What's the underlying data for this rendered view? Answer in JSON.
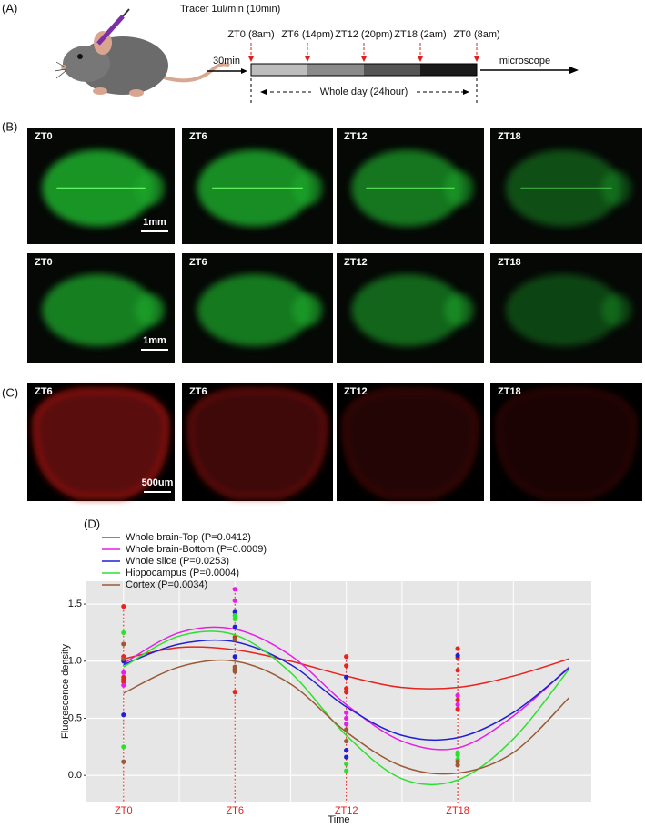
{
  "panel_a": {
    "label": "(A)",
    "tracer": "Tracer 1ul/min (10min)",
    "delay": "30min",
    "timepoints": [
      "ZT0 (8am)",
      "ZT6 (14pm)",
      "ZT12 (20pm)",
      "ZT18 (2am)",
      "ZT0 (8am)"
    ],
    "span": "Whole day (24hour)",
    "end": "microscope"
  },
  "panel_b": {
    "label": "(B)",
    "rows": [
      [
        "ZT0",
        "ZT6",
        "ZT12",
        "ZT18"
      ],
      [
        "ZT0",
        "ZT6",
        "ZT12",
        "ZT18"
      ]
    ],
    "scale_bar": "1mm"
  },
  "panel_c": {
    "label": "(C)",
    "images": [
      "ZT6",
      "ZT6",
      "ZT12",
      "ZT18"
    ],
    "scale_bar": "500um"
  },
  "chart_data": {
    "type": "scatter",
    "panel_label": "(D)",
    "x_label": "Time",
    "y_label": "Fluorescence density",
    "xlim": [
      -2,
      25.2
    ],
    "ylim": [
      -0.23,
      1.7
    ],
    "xticks": [
      {
        "value": 0,
        "label": "ZT0"
      },
      {
        "value": 6,
        "label": "ZT6"
      },
      {
        "value": 12,
        "label": "ZT12"
      },
      {
        "value": 18,
        "label": "ZT18"
      }
    ],
    "xgrid": [
      0,
      3,
      6,
      9,
      12,
      15,
      18,
      21,
      24
    ],
    "yticks": [
      {
        "value": 0,
        "label": "0.0"
      },
      0.5,
      {
        "value": 1,
        "label": "1.0"
      },
      1.5
    ],
    "grid": true,
    "series": [
      {
        "name": "Whole brain-Top (P=0.0412)",
        "color": "#e8221c",
        "x": [
          0,
          0,
          0,
          0,
          0,
          6,
          6,
          6,
          12,
          12,
          12,
          12,
          18,
          18,
          18,
          18,
          18
        ],
        "values": [
          1.48,
          1.04,
          0.86,
          0.84,
          0.82,
          1.21,
          0.93,
          0.73,
          1.04,
          0.96,
          0.76,
          0.73,
          1.11,
          1.03,
          0.92,
          0.66,
          0.58
        ],
        "fit": {
          "x": [
            0,
            3,
            6,
            9,
            12,
            15,
            18,
            21,
            24
          ],
          "values": [
            1.02,
            1.12,
            1.1,
            1.0,
            0.87,
            0.77,
            0.77,
            0.87,
            1.02
          ]
        }
      },
      {
        "name": "Whole brain-Bottom (P=0.0009)",
        "color": "#e61ee6",
        "x": [
          0,
          0,
          6,
          6,
          12,
          12,
          12,
          18,
          18
        ],
        "values": [
          0.9,
          0.79,
          1.63,
          1.53,
          0.55,
          0.5,
          0.45,
          0.7,
          0.62
        ],
        "fit": {
          "x": [
            0,
            3,
            6,
            9,
            12,
            15,
            18,
            21,
            24
          ],
          "values": [
            0.98,
            1.25,
            1.28,
            1.05,
            0.62,
            0.3,
            0.24,
            0.52,
            0.95
          ]
        }
      },
      {
        "name": "Whole slice (P=0.0253)",
        "color": "#1f1fd6",
        "x": [
          0,
          0,
          6,
          6,
          6,
          12,
          12,
          12,
          18
        ],
        "values": [
          1.0,
          0.53,
          1.43,
          1.3,
          1.04,
          0.86,
          0.22,
          0.16,
          1.05
        ],
        "fit": {
          "x": [
            0,
            3,
            6,
            9,
            12,
            15,
            18,
            21,
            24
          ],
          "values": [
            0.97,
            1.15,
            1.17,
            0.97,
            0.6,
            0.35,
            0.33,
            0.55,
            0.94
          ]
        }
      },
      {
        "name": "Hippocampus (P=0.0004)",
        "color": "#2ee02e",
        "x": [
          0,
          0,
          6,
          6,
          12,
          12,
          18,
          18,
          18
        ],
        "values": [
          1.25,
          0.25,
          1.4,
          1.37,
          0.1,
          0.04,
          0.2,
          0.18,
          0.14
        ],
        "fit": {
          "x": [
            0,
            3,
            6,
            9,
            12,
            15,
            18,
            21,
            24
          ],
          "values": [
            0.95,
            1.22,
            1.23,
            0.9,
            0.35,
            -0.03,
            -0.04,
            0.32,
            0.93
          ]
        }
      },
      {
        "name": "Cortex (P=0.0034)",
        "color": "#9a5a35",
        "x": [
          0,
          0,
          0,
          6,
          6,
          6,
          12,
          12,
          18,
          18
        ],
        "values": [
          1.15,
          0.12,
          1.02,
          0.91,
          0.95,
          1.19,
          0.4,
          0.3,
          0.12,
          0.09
        ],
        "fit": {
          "x": [
            0,
            3,
            6,
            9,
            12,
            15,
            18,
            21,
            24
          ],
          "values": [
            0.72,
            0.95,
            1.0,
            0.8,
            0.38,
            0.08,
            0.02,
            0.2,
            0.68
          ]
        }
      }
    ]
  }
}
